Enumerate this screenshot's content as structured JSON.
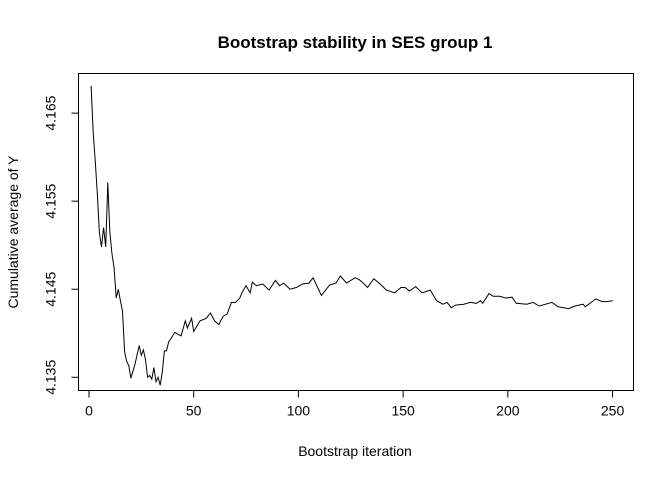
{
  "chart_data": {
    "type": "line",
    "title": "Bootstrap stability in SES group 1",
    "xlabel": "Bootstrap iteration",
    "ylabel": "Cumulative average of Y",
    "xlim": [
      -5,
      260
    ],
    "ylim": [
      4.1335,
      4.1695
    ],
    "xticks": [
      0,
      50,
      100,
      150,
      200,
      250
    ],
    "yticks": [
      4.135,
      4.145,
      4.155,
      4.165
    ],
    "ytick_labels": [
      "4.135",
      "4.145",
      "4.155",
      "4.165"
    ],
    "grid": false,
    "line_color": "#000000",
    "series": [
      {
        "x": [
          1,
          2,
          3,
          4,
          5,
          6,
          7,
          8,
          9,
          10,
          11,
          12,
          13,
          14,
          15,
          16,
          17,
          18,
          19,
          20,
          22,
          24,
          25,
          26,
          27,
          28,
          29,
          30,
          31,
          32,
          33,
          34,
          35,
          36,
          37,
          38,
          40,
          41,
          44,
          46,
          47,
          49,
          50,
          52,
          53,
          56,
          58,
          60,
          62,
          64,
          66,
          68,
          70,
          72,
          73,
          75,
          77,
          78,
          80,
          83,
          86,
          89,
          91,
          93,
          96,
          99,
          102,
          105,
          107,
          111,
          115,
          118,
          120,
          123,
          127,
          129,
          131,
          133,
          136,
          139,
          142,
          146,
          149,
          151,
          153,
          156,
          159,
          163,
          166,
          169,
          171,
          173,
          175,
          179,
          182,
          185,
          187,
          188,
          191,
          193,
          196,
          199,
          202,
          204,
          209,
          212,
          215,
          221,
          224,
          229,
          232,
          236,
          237,
          242,
          245,
          247,
          250
        ],
        "y": [
          4.1681,
          4.1628,
          4.1595,
          4.1559,
          4.1514,
          4.1498,
          4.152,
          4.1498,
          4.1571,
          4.1514,
          4.149,
          4.1474,
          4.144,
          4.145,
          4.1437,
          4.1425,
          4.1379,
          4.1368,
          4.1363,
          4.1349,
          4.1365,
          4.1386,
          4.1375,
          4.1381,
          4.137,
          4.135,
          4.1352,
          4.1348,
          4.1361,
          4.1345,
          4.135,
          4.1341,
          4.1356,
          4.138,
          4.138,
          4.139,
          4.1397,
          4.1401,
          4.1397,
          4.1414,
          4.1406,
          4.1417,
          4.1402,
          4.141,
          4.1414,
          4.1417,
          4.1423,
          4.1414,
          4.141,
          4.1419,
          4.1422,
          4.1435,
          4.1435,
          4.144,
          4.1446,
          4.1454,
          4.1446,
          4.1458,
          4.1454,
          4.1456,
          4.1449,
          4.146,
          4.1454,
          4.1457,
          4.145,
          4.1452,
          4.1456,
          4.1457,
          4.1463,
          4.1443,
          4.1455,
          4.1457,
          4.1465,
          4.1457,
          4.1463,
          4.1461,
          4.1457,
          4.1452,
          4.1462,
          4.1456,
          4.1449,
          4.1446,
          4.1452,
          4.1452,
          4.1448,
          4.1453,
          4.1446,
          4.1449,
          4.1437,
          4.1433,
          4.1435,
          4.1429,
          4.1432,
          4.1433,
          4.1435,
          4.1434,
          4.1437,
          4.1434,
          4.1445,
          4.1442,
          4.1442,
          4.144,
          4.1441,
          4.1434,
          4.1433,
          4.1435,
          4.1431,
          4.1435,
          4.143,
          4.1428,
          4.1431,
          4.1433,
          4.143,
          4.1439,
          4.1436,
          4.1436,
          4.1437
        ]
      }
    ]
  }
}
